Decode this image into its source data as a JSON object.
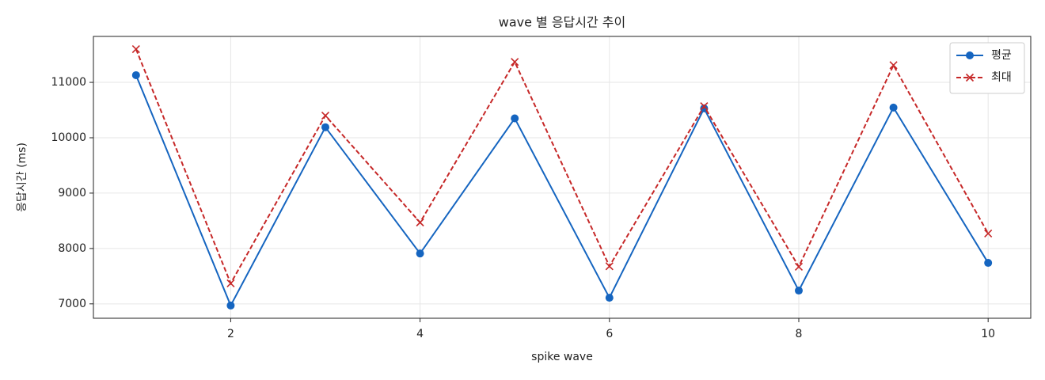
{
  "chart_data": {
    "type": "line",
    "title": "wave 별 응답시간 추이",
    "xlabel": "spike wave",
    "ylabel": "응답시간 (ms)",
    "x": [
      1,
      2,
      3,
      4,
      5,
      6,
      7,
      8,
      9,
      10
    ],
    "series": [
      {
        "name": "평균",
        "color": "#1565c0",
        "marker": "o",
        "dash": false,
        "values": [
          11130,
          6970,
          10190,
          7910,
          10350,
          7110,
          10530,
          7240,
          10545,
          7740
        ]
      },
      {
        "name": "최대",
        "color": "#c62828",
        "marker": "x",
        "dash": true,
        "values": [
          11600,
          7370,
          10400,
          8470,
          11370,
          7680,
          10570,
          7670,
          11310,
          8270
        ]
      }
    ],
    "xlim": [
      0.55,
      10.45
    ],
    "xticks": [
      2,
      4,
      6,
      8,
      10
    ],
    "ylim": [
      6740,
      11830
    ],
    "yticks": [
      7000,
      8000,
      9000,
      10000,
      11000
    ],
    "grid": true,
    "legend": "upper right"
  }
}
